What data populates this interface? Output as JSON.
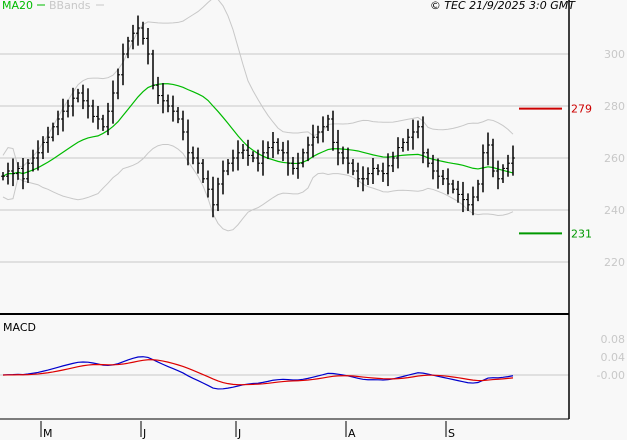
{
  "header": {
    "legend": [
      {
        "label": "MA20",
        "color": "#00bb00"
      },
      {
        "label": "BBands",
        "color": "#c8c8c8"
      }
    ],
    "copyright": "© TEC 21/9/2025 3:0 GMT"
  },
  "chart_data": [
    {
      "type": "ohlc",
      "title": "",
      "y_ticks": [
        "300",
        "280",
        "260",
        "240",
        "220"
      ],
      "y_tick_values": [
        300,
        280,
        260,
        240,
        220
      ],
      "ylim": [
        201,
        318
      ],
      "x_ticks": [
        "M",
        "J",
        "J",
        "A",
        "S"
      ],
      "x_tick_bar_index": [
        8,
        28,
        47,
        69,
        89
      ],
      "grid": true,
      "overlays": [
        "MA20",
        "BBands"
      ],
      "close": [
        253,
        255,
        254,
        256,
        252,
        258,
        260,
        262,
        266,
        268,
        272,
        275,
        278,
        280,
        283,
        285,
        282,
        280,
        276,
        275,
        272,
        278,
        285,
        292,
        300,
        305,
        308,
        310,
        306,
        300,
        288,
        284,
        282,
        280,
        278,
        275,
        270,
        262,
        260,
        258,
        252,
        248,
        242,
        250,
        255,
        258,
        260,
        262,
        263,
        261,
        260,
        258,
        262,
        264,
        266,
        263,
        262,
        258,
        256,
        258,
        262,
        265,
        268,
        270,
        272,
        275,
        266,
        262,
        260,
        258,
        255,
        252,
        252,
        254,
        256,
        255,
        254,
        257,
        260,
        264,
        266,
        268,
        270,
        272,
        262,
        258,
        255,
        253,
        252,
        250,
        248,
        246,
        244,
        242,
        245,
        250,
        262,
        265,
        255,
        252,
        256,
        258,
        260
      ],
      "levels": [
        {
          "value": 279,
          "label": "279",
          "color": "#cc0000"
        },
        {
          "value": 231,
          "label": "231",
          "color": "#009900"
        }
      ]
    },
    {
      "type": "line",
      "title": "MACD",
      "y_ticks": [
        "0.08",
        "0.04",
        "-0.00"
      ],
      "y_tick_values": [
        0.08,
        0.04,
        0
      ],
      "series": [
        {
          "name": "MACD",
          "color": "#0000cc"
        },
        {
          "name": "Signal",
          "color": "#dd0000"
        }
      ]
    }
  ]
}
